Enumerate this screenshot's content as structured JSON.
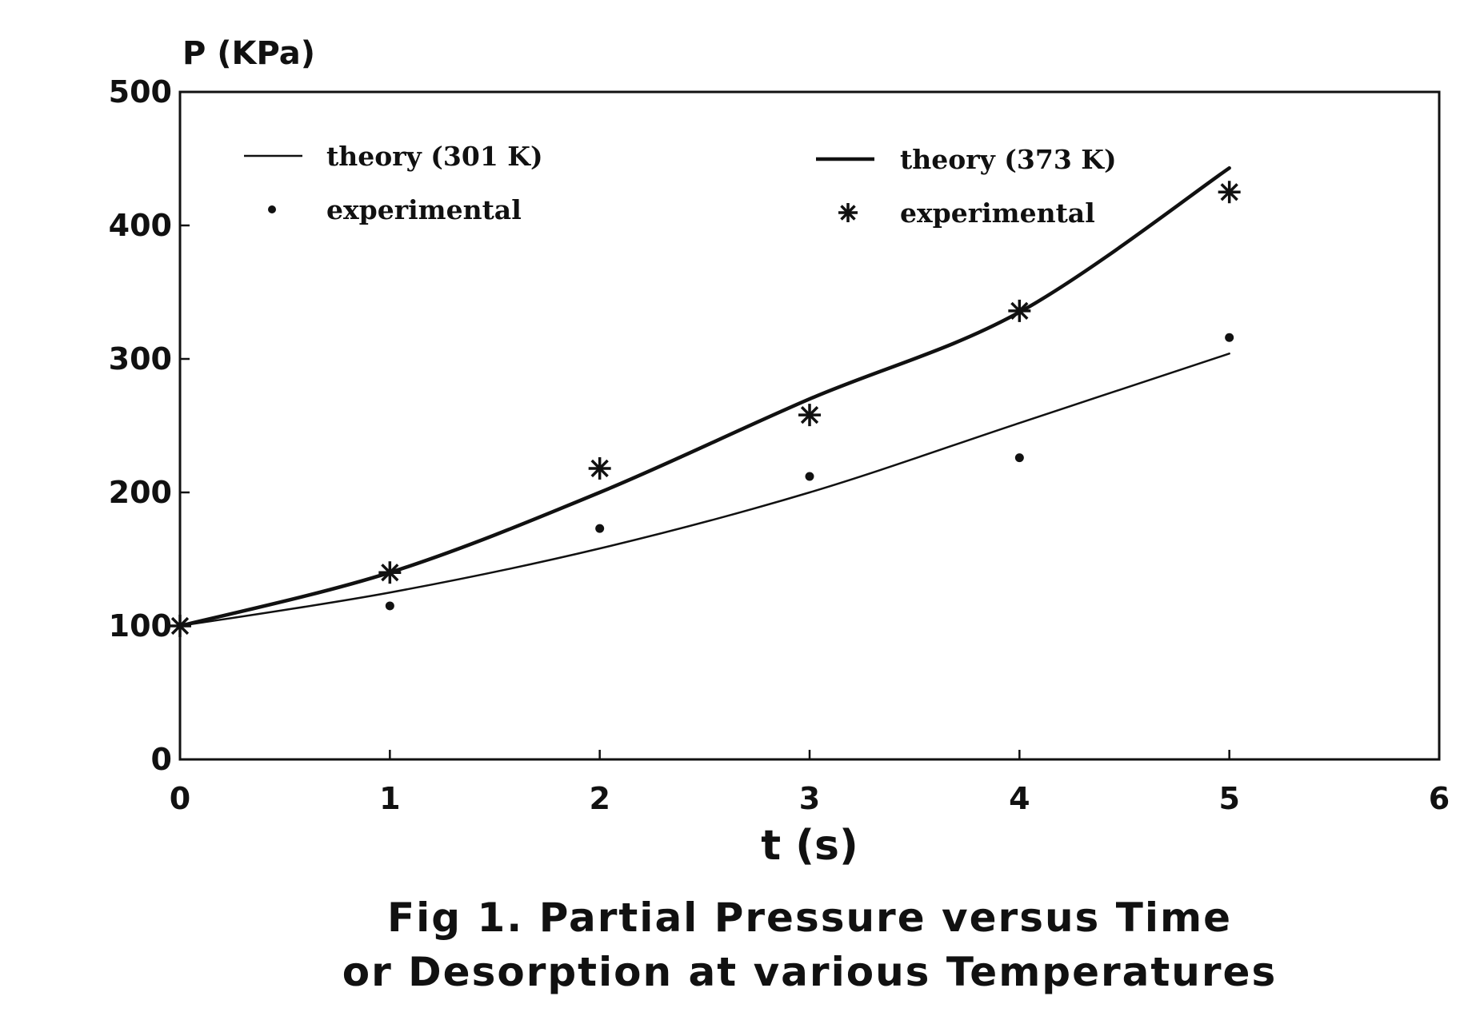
{
  "chart_data": {
    "type": "line",
    "title": "",
    "xlabel": "t (s)",
    "ylabel": "P (KPa)",
    "xlim": [
      0,
      6
    ],
    "ylim": [
      0,
      500
    ],
    "x_ticks": [
      "0",
      "1",
      "2",
      "3",
      "4",
      "5",
      "6"
    ],
    "y_ticks": [
      "0",
      "100",
      "200",
      "300",
      "400",
      "500"
    ],
    "grid": false,
    "legend_position": "top",
    "series": [
      {
        "name": "theory (301 K)",
        "kind": "line",
        "style": "thin",
        "x": [
          0,
          1,
          2,
          3,
          4,
          5
        ],
        "y": [
          100,
          125,
          158,
          200,
          252,
          304
        ]
      },
      {
        "name": "experimental",
        "kind": "scatter",
        "marker": "dot",
        "x": [
          1,
          2,
          3,
          4,
          5
        ],
        "y": [
          115,
          173,
          212,
          226,
          316
        ]
      },
      {
        "name": "theory (373 K)",
        "kind": "line",
        "style": "thick",
        "x": [
          0,
          1,
          2,
          3,
          4,
          5
        ],
        "y": [
          100,
          140,
          200,
          270,
          335,
          443
        ]
      },
      {
        "name": "experimental",
        "kind": "scatter",
        "marker": "asterisk",
        "x": [
          0,
          1,
          2,
          3,
          4,
          5
        ],
        "y": [
          100,
          140,
          218,
          258,
          336,
          425
        ]
      }
    ]
  },
  "caption": {
    "line1": "Fig 1. Partial Pressure versus Time",
    "line2": "or Desorption at various Temperatures"
  }
}
